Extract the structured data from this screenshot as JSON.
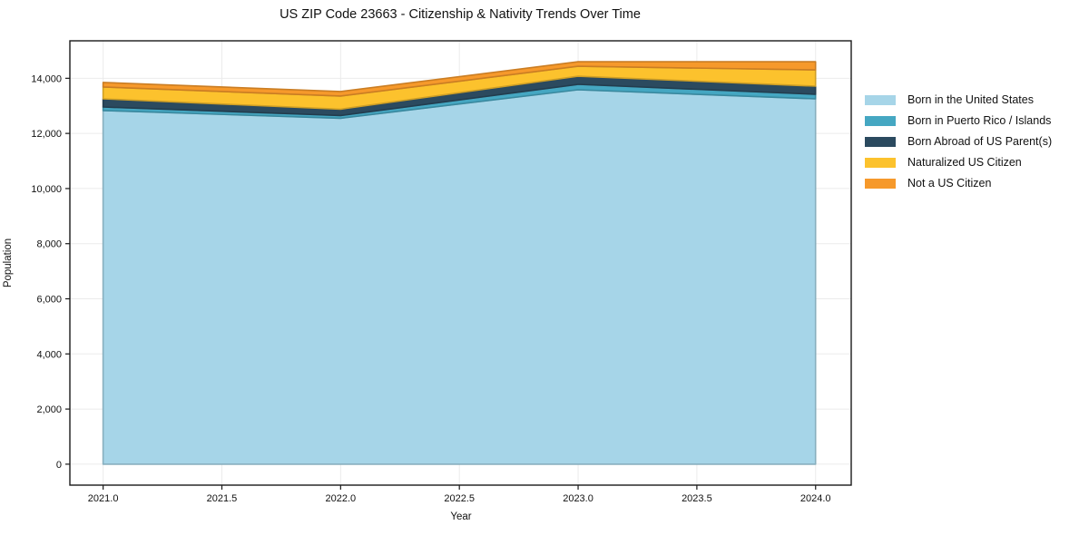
{
  "chart_data": {
    "type": "area",
    "stacked": true,
    "title": "US ZIP Code 23663 - Citizenship & Nativity Trends Over Time",
    "xlabel": "Year",
    "ylabel": "Population",
    "x": [
      2021,
      2022,
      2023,
      2024
    ],
    "series": [
      {
        "name": "Born in the United States",
        "color": "#a6d5e8",
        "values": [
          12830,
          12550,
          13585,
          13255
        ]
      },
      {
        "name": "Born in Puerto Rico / Islands",
        "color": "#45a7c2",
        "values": [
          130,
          100,
          195,
          165
        ]
      },
      {
        "name": "Born Abroad of US Parent(s)",
        "color": "#2b4a5f",
        "values": [
          295,
          230,
          295,
          295
        ]
      },
      {
        "name": "Naturalized US Citizen",
        "color": "#fcc22d",
        "values": [
          430,
          475,
          360,
          590
        ]
      },
      {
        "name": "Not a US Citizen",
        "color": "#f6992b",
        "values": [
          165,
          165,
          165,
          295
        ]
      }
    ],
    "totals": [
      13850,
      13520,
      14600,
      14600
    ],
    "xticks": {
      "values": [
        2021.0,
        2021.5,
        2022.0,
        2022.5,
        2023.0,
        2023.5,
        2024.0
      ],
      "labels": [
        "2021.0",
        "2021.5",
        "2022.0",
        "2022.5",
        "2023.0",
        "2023.5",
        "2024.0"
      ]
    },
    "yticks": {
      "values": [
        0,
        2000,
        4000,
        6000,
        8000,
        10000,
        12000,
        14000
      ],
      "labels": [
        "0",
        "2,000",
        "4,000",
        "6,000",
        "8,000",
        "10,000",
        "12,000",
        "14,000"
      ]
    },
    "xlim": [
      2020.86,
      2024.15
    ],
    "ylim": [
      -760,
      15360
    ],
    "grid": true,
    "legend_position": "right-outside",
    "frame_color": "#1a1a1a",
    "grid_color": "#ebebeb"
  }
}
